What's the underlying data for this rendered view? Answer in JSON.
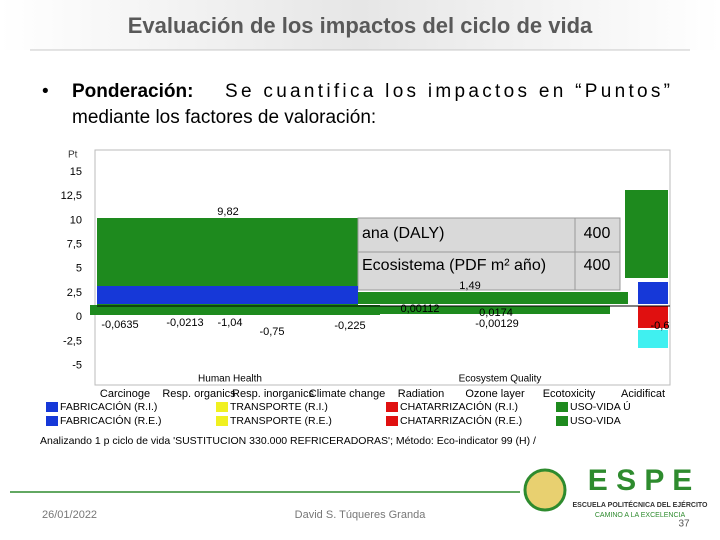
{
  "header": {
    "title": "Evaluación de los impactos del ciclo de vida"
  },
  "bullet": {
    "label": "Ponderación:",
    "line1": "Se cuantifica los impactos en “Puntos”",
    "line2": "mediante los factores de valoración:"
  },
  "chart": {
    "unit": "Pt",
    "y_labels": [
      "15",
      "12,5",
      "10",
      "7,5",
      "5",
      "2,5",
      "0",
      "-2,5",
      "-5"
    ],
    "value_labels": [
      "9,82",
      "-0,0635",
      "-0,0213",
      "-1,04",
      "-0,75",
      "-0,225",
      "0,00112",
      "-0,00129",
      "0,0174",
      "1,49",
      "-0,6"
    ],
    "table": [
      [
        "ana (DALY)",
        "400"
      ],
      [
        "Ecosistema (PDF m² año)",
        "400"
      ]
    ],
    "categories": [
      "Carcinoge",
      "Resp. organics",
      "Resp. inorganics",
      "Climate change",
      "Radiation",
      "Ozone layer",
      "Ecotoxicity",
      "Acidificat"
    ],
    "groups": [
      "Human Health",
      "Ecosystem Quality"
    ],
    "legend": [
      "FABRICACIÓN (R.I.)",
      "TRANSPORTE (R.I.)",
      "CHATARRIZACIÓN (R.I.)",
      "USO-VIDA Ú",
      "FABRICACIÓN (R.E.)",
      "TRANSPORTE (R.E.)",
      "CHATARRIZACIÓN (R.E.)",
      "USO-VIDA"
    ],
    "caption": "Analizando 1 p ciclo de vida 'SUSTITUCION 330.000 REFRICERADORAS'; Método: Eco-indicator 99 (H) /"
  },
  "footer": {
    "date": "26/01/2022",
    "author": "David S. Túqueres Granda",
    "page": "37",
    "logo": "E S P E",
    "school": "ESCUELA POLITÉCNICA DEL EJÉRCITO",
    "motto": "CAMINO A LA EXCELENCIA"
  }
}
